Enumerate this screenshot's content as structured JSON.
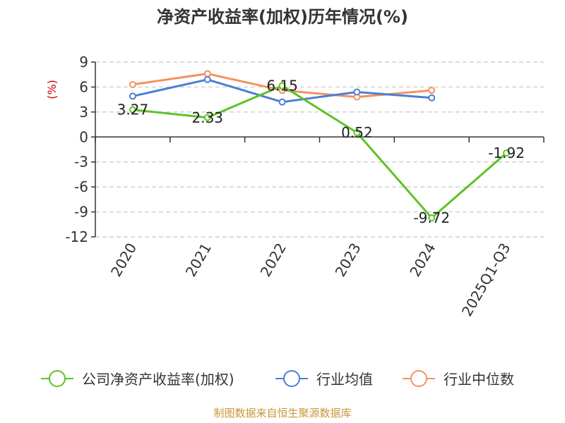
{
  "chart_data": {
    "type": "line",
    "title": "净资产收益率(加权)历年情况(%)",
    "ylabel": "(%)",
    "xlabel": "",
    "categories": [
      "2020",
      "2021",
      "2022",
      "2023",
      "2024",
      "2025Q1-Q3"
    ],
    "ylim": [
      -12,
      9
    ],
    "yticks": [
      9,
      6,
      3,
      0,
      -3,
      -6,
      -9,
      -12
    ],
    "grid": true,
    "legend_position": "bottom",
    "series": [
      {
        "name": "公司净资产收益率(加权)",
        "color": "#5ec227",
        "values": [
          3.27,
          2.33,
          6.15,
          0.52,
          -9.72,
          -1.92
        ],
        "labels": [
          "3.27",
          "2.33",
          "6.15",
          "0.52",
          "-9.72",
          "-1.92"
        ]
      },
      {
        "name": "行业均值",
        "color": "#4a7fd6",
        "values": [
          4.9,
          6.9,
          4.2,
          5.4,
          4.7,
          null
        ]
      },
      {
        "name": "行业中位数",
        "color": "#f59160",
        "values": [
          6.3,
          7.6,
          5.6,
          4.8,
          5.6,
          null
        ]
      }
    ],
    "source": "制图数据来自恒生聚源数据库"
  }
}
